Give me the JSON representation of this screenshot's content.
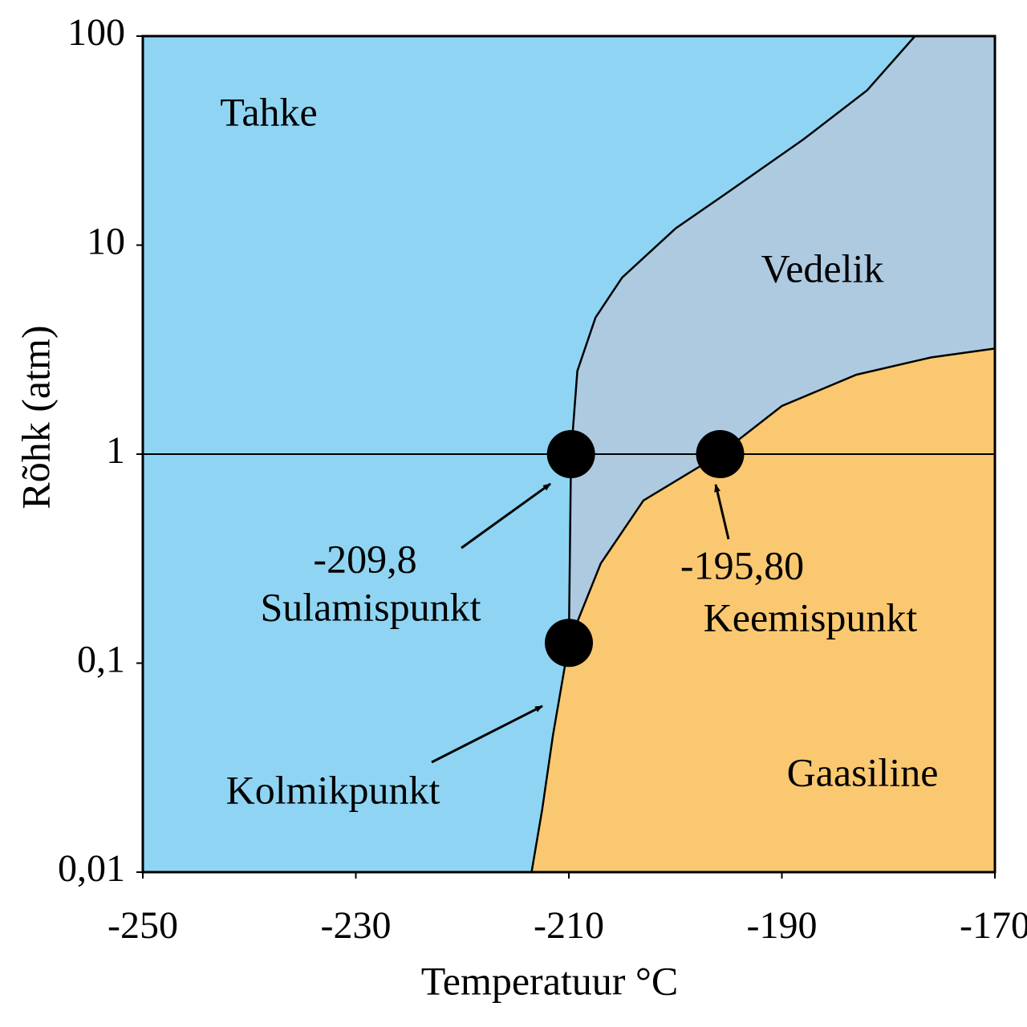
{
  "chart_data": {
    "type": "phase-diagram",
    "x_label": "Temperatuur °C",
    "y_label": "Rõhk (atm)",
    "xlim": [
      -250,
      -170
    ],
    "xticks": [
      -250,
      -230,
      -210,
      -190,
      -170
    ],
    "ylim": [
      0.01,
      100
    ],
    "yticks": [
      {
        "value": 0.01,
        "label": "0,01"
      },
      {
        "value": 0.1,
        "label": "0,1"
      },
      1,
      10,
      100
    ],
    "log_scale": true,
    "hline": 1,
    "regions": [
      {
        "name": "Tahke",
        "color": "#8fd5f3"
      },
      {
        "name": "Vedelik",
        "color": "#aecae1"
      },
      {
        "name": "Gaasiline",
        "color": "#f9c870"
      }
    ],
    "boundaries": {
      "sublimation": {
        "x": [
          -213.5,
          -212.5,
          -211.5,
          -210.0
        ],
        "y": [
          0.01,
          0.02,
          0.045,
          0.125
        ]
      },
      "melting": {
        "x": [
          -210.0,
          -209.8,
          -209.2,
          -207.5,
          -205,
          -200,
          -195,
          -188,
          -182,
          -177.5
        ],
        "y": [
          0.125,
          1,
          2.5,
          4.5,
          7,
          12,
          18,
          32,
          55,
          100
        ]
      },
      "vaporization": {
        "x": [
          -210.0,
          -207,
          -203,
          -195.8,
          -190,
          -183,
          -176,
          -170
        ],
        "y": [
          0.125,
          0.3,
          0.6,
          1,
          1.7,
          2.4,
          2.9,
          3.2
        ]
      }
    },
    "points": [
      {
        "label": "Kolmikpunkt",
        "x": -210.0,
        "y": 0.125
      },
      {
        "label": "Sulamispunkt",
        "x": -209.8,
        "y": 1,
        "value_label": "-209,8"
      },
      {
        "label": "Keemispunkt",
        "x": -195.8,
        "y": 1,
        "value_label": "-195,80"
      }
    ]
  }
}
